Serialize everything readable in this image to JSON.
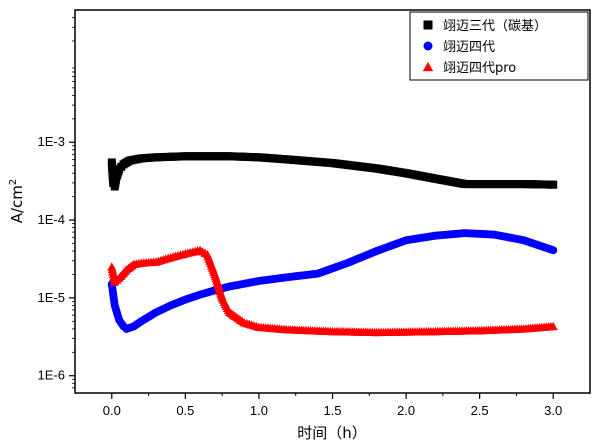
{
  "chart_data": {
    "type": "scatter",
    "title": "",
    "xlabel": "时间（h）",
    "ylabel": "A/cm",
    "ylabel_superscript": "2",
    "xlim": [
      -0.25,
      3.25
    ],
    "ylim": [
      6e-07,
      0.05
    ],
    "yscale": "log",
    "x_ticks": [
      0.0,
      0.5,
      1.0,
      1.5,
      2.0,
      2.5,
      3.0
    ],
    "x_tick_labels": [
      "0.0",
      "0.5",
      "1.0",
      "1.5",
      "2.0",
      "2.5",
      "3.0"
    ],
    "y_ticks": [
      1e-06,
      1e-05,
      0.0001,
      0.001
    ],
    "y_tick_labels": [
      "1E-6",
      "1E-5",
      "1E-4",
      "1E-3"
    ],
    "legend_position": "top-right",
    "series": [
      {
        "name": "翊迈三代（碳基）",
        "marker": "square",
        "color": "#000000",
        "x": [
          0.0,
          0.01,
          0.02,
          0.03,
          0.05,
          0.08,
          0.12,
          0.2,
          0.3,
          0.5,
          0.8,
          1.0,
          1.2,
          1.5,
          1.8,
          2.0,
          2.2,
          2.4,
          2.6,
          2.8,
          3.0
        ],
        "values": [
          0.00055,
          0.0003,
          0.00027,
          0.00035,
          0.00045,
          0.00052,
          0.00058,
          0.00062,
          0.00064,
          0.00066,
          0.00066,
          0.00064,
          0.0006,
          0.00054,
          0.00046,
          0.0004,
          0.00034,
          0.00029,
          0.00029,
          0.00029,
          0.000285
        ]
      },
      {
        "name": "翊迈四代",
        "marker": "circle",
        "color": "#0000ff",
        "x": [
          0.0,
          0.02,
          0.05,
          0.08,
          0.1,
          0.15,
          0.2,
          0.3,
          0.4,
          0.5,
          0.6,
          0.7,
          0.8,
          1.0,
          1.2,
          1.4,
          1.6,
          1.8,
          2.0,
          2.2,
          2.4,
          2.6,
          2.8,
          3.0
        ],
        "values": [
          1.5e-05,
          8e-06,
          5.2e-06,
          4.3e-06,
          4e-06,
          4.3e-06,
          5e-06,
          6.5e-06,
          8e-06,
          9.5e-06,
          1.1e-05,
          1.25e-05,
          1.4e-05,
          1.65e-05,
          1.85e-05,
          2.05e-05,
          2.8e-05,
          4e-05,
          5.5e-05,
          6.3e-05,
          6.8e-05,
          6.5e-05,
          5.5e-05,
          4.1e-05
        ]
      },
      {
        "name": "翊迈四代pro",
        "marker": "triangle",
        "color": "#ff0000",
        "x": [
          0.0,
          0.02,
          0.05,
          0.1,
          0.15,
          0.2,
          0.3,
          0.4,
          0.5,
          0.6,
          0.65,
          0.7,
          0.75,
          0.8,
          0.9,
          1.0,
          1.2,
          1.5,
          1.8,
          2.0,
          2.2,
          2.5,
          2.8,
          3.0
        ],
        "values": [
          2.5e-05,
          1.6e-05,
          1.8e-05,
          2.3e-05,
          2.7e-05,
          2.8e-05,
          2.9e-05,
          3.3e-05,
          3.7e-05,
          4.1e-05,
          3.6e-05,
          2e-05,
          1e-05,
          6.5e-06,
          4.8e-06,
          4.2e-06,
          3.9e-06,
          3.7e-06,
          3.6e-06,
          3.65e-06,
          3.7e-06,
          3.8e-06,
          4e-06,
          4.3e-06
        ]
      }
    ]
  }
}
